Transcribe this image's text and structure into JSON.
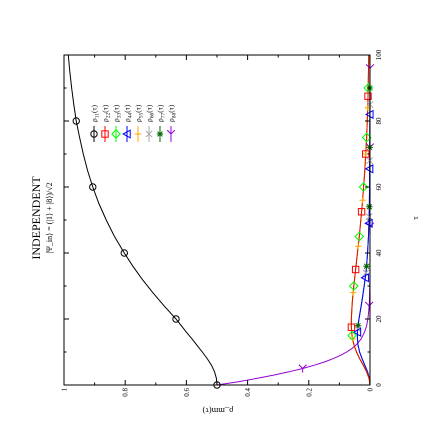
{
  "chart_data": {
    "type": "line",
    "title": "INDEPENDENT",
    "subtitle": "|Ψ_in⟩ = (|1⟩ + |8⟩)/√2",
    "xlabel": "τ",
    "ylabel": "ρ_mm(τ)",
    "xlim": [
      0,
      100
    ],
    "ylim": [
      0,
      1
    ],
    "x_ticks": [
      "0",
      "20",
      "40",
      "60",
      "80",
      "100"
    ],
    "y_ticks": [
      "0",
      "0.2",
      "0.4",
      "0.6",
      "0.8",
      "1"
    ],
    "grid": false,
    "legend_position": "top-left",
    "series": [
      {
        "name": "ρ11(τ)",
        "label_main": "ρ",
        "label_sub": "11",
        "label_tail": "(τ)",
        "color": "#000000",
        "marker": "circle",
        "marker_x": [
          0,
          20,
          40,
          60,
          80
        ],
        "x": [
          0,
          2,
          4,
          6,
          8,
          10,
          12,
          14,
          16,
          18,
          20,
          24,
          28,
          32,
          36,
          40,
          45,
          50,
          55,
          60,
          65,
          70,
          75,
          80,
          85,
          90,
          95,
          100
        ],
        "y": [
          0.5,
          0.502,
          0.508,
          0.518,
          0.532,
          0.548,
          0.565,
          0.582,
          0.6,
          0.617,
          0.634,
          0.673,
          0.71,
          0.744,
          0.775,
          0.803,
          0.835,
          0.862,
          0.886,
          0.906,
          0.923,
          0.937,
          0.949,
          0.96,
          0.968,
          0.975,
          0.981,
          0.986
        ]
      },
      {
        "name": "ρ22(τ)",
        "label_main": "ρ",
        "label_sub": "22",
        "label_tail": "(τ)",
        "color": "#ff0000",
        "marker": "square",
        "marker_x": [
          17.5,
          35,
          52.5,
          70,
          87.5
        ],
        "x": [
          0,
          2,
          4,
          6,
          8,
          10,
          12,
          14,
          16,
          18,
          20,
          25,
          30,
          35,
          40,
          45,
          50,
          55,
          60,
          65,
          70,
          75,
          80,
          85,
          90,
          95,
          100
        ],
        "y": [
          0,
          0.003,
          0.011,
          0.022,
          0.034,
          0.044,
          0.052,
          0.057,
          0.06,
          0.061,
          0.061,
          0.058,
          0.053,
          0.047,
          0.041,
          0.035,
          0.03,
          0.025,
          0.021,
          0.017,
          0.014,
          0.011,
          0.009,
          0.007,
          0.006,
          0.005,
          0.004
        ]
      },
      {
        "name": "ρ33(τ)",
        "label_main": "ρ",
        "label_sub": "33",
        "label_tail": "(τ)",
        "color": "#00ff00",
        "marker": "diamond",
        "marker_x": [
          15,
          30,
          45,
          60,
          75,
          90
        ],
        "x": [
          0,
          2,
          4,
          6,
          8,
          10,
          12,
          14,
          16,
          18,
          20,
          25,
          30,
          35,
          40,
          45,
          50,
          55,
          60,
          65,
          70,
          75,
          80,
          85,
          90,
          95,
          100
        ],
        "y": [
          0,
          0.003,
          0.011,
          0.022,
          0.034,
          0.044,
          0.052,
          0.057,
          0.06,
          0.061,
          0.061,
          0.058,
          0.053,
          0.047,
          0.041,
          0.035,
          0.03,
          0.025,
          0.021,
          0.017,
          0.014,
          0.011,
          0.009,
          0.007,
          0.006,
          0.005,
          0.004
        ]
      },
      {
        "name": "ρ44(τ)",
        "label_main": "ρ",
        "label_sub": "44",
        "label_tail": "(τ)",
        "color": "#0000ff",
        "marker": "triangle",
        "marker_x": [
          16,
          32.5,
          49,
          65.5,
          82
        ],
        "x": [
          0,
          2,
          4,
          6,
          8,
          10,
          12,
          14,
          16,
          18,
          20,
          25,
          30,
          35,
          40,
          45,
          50,
          55,
          60,
          70,
          80,
          90,
          100
        ],
        "y": [
          0,
          0.002,
          0.008,
          0.017,
          0.026,
          0.034,
          0.039,
          0.041,
          0.041,
          0.039,
          0.036,
          0.027,
          0.019,
          0.012,
          0.008,
          0.005,
          0.003,
          0.002,
          0.0015,
          0.001,
          0.0005,
          0.0003,
          0.0002
        ]
      },
      {
        "name": "ρ55(τ)",
        "label_main": "ρ",
        "label_sub": "55",
        "label_tail": "(τ)",
        "color": "#ffa500",
        "marker": "plus",
        "marker_x": [
          14,
          28,
          42,
          56,
          70,
          84
        ],
        "x": [
          0,
          2,
          4,
          6,
          8,
          10,
          12,
          14,
          16,
          18,
          20,
          25,
          30,
          35,
          40,
          45,
          50,
          55,
          60,
          65,
          70,
          75,
          80,
          85,
          90,
          95,
          100
        ],
        "y": [
          0,
          0.003,
          0.011,
          0.022,
          0.034,
          0.044,
          0.052,
          0.057,
          0.06,
          0.061,
          0.061,
          0.058,
          0.053,
          0.047,
          0.041,
          0.035,
          0.03,
          0.025,
          0.021,
          0.017,
          0.014,
          0.011,
          0.009,
          0.007,
          0.006,
          0.005,
          0.004
        ]
      },
      {
        "name": "ρ66(τ)",
        "label_main": "ρ",
        "label_sub": "66",
        "label_tail": "(τ)",
        "color": "#a9a9a9",
        "marker": "cross",
        "marker_x": [
          17,
          34,
          51,
          68,
          85
        ],
        "x": [
          0,
          2,
          4,
          6,
          8,
          10,
          12,
          14,
          16,
          18,
          20,
          25,
          30,
          35,
          40,
          45,
          50,
          55,
          60,
          70,
          80,
          90,
          100
        ],
        "y": [
          0,
          0.002,
          0.008,
          0.017,
          0.026,
          0.034,
          0.039,
          0.041,
          0.041,
          0.039,
          0.036,
          0.027,
          0.019,
          0.012,
          0.008,
          0.005,
          0.003,
          0.002,
          0.0015,
          0.001,
          0.0005,
          0.0003,
          0.0002
        ]
      },
      {
        "name": "ρ77(τ)",
        "label_main": "ρ",
        "label_sub": "77",
        "label_tail": "(τ)",
        "color": "#006400",
        "marker": "star",
        "marker_x": [
          18,
          36,
          54,
          72,
          90
        ],
        "x": [
          0,
          2,
          4,
          6,
          8,
          10,
          12,
          14,
          16,
          18,
          20,
          25,
          30,
          35,
          40,
          45,
          50,
          55,
          60,
          70,
          80,
          90,
          100
        ],
        "y": [
          0,
          0.002,
          0.008,
          0.017,
          0.026,
          0.034,
          0.039,
          0.041,
          0.041,
          0.039,
          0.036,
          0.027,
          0.019,
          0.012,
          0.008,
          0.005,
          0.003,
          0.002,
          0.0015,
          0.001,
          0.0005,
          0.0003,
          0.0002
        ]
      },
      {
        "name": "ρ88(τ)",
        "label_main": "ρ",
        "label_sub": "88",
        "label_tail": "(τ)",
        "color": "#9400d3",
        "marker": "tri-right",
        "marker_x": [
          5,
          24,
          48,
          72,
          96
        ],
        "x": [
          0,
          1,
          2,
          3,
          4,
          5,
          6,
          7,
          8,
          9,
          10,
          11,
          12,
          13,
          14,
          16,
          18,
          20,
          22,
          25,
          30,
          35,
          40,
          50,
          60,
          70,
          80,
          90,
          100
        ],
        "y": [
          0.5,
          0.43,
          0.37,
          0.315,
          0.265,
          0.22,
          0.182,
          0.148,
          0.12,
          0.096,
          0.076,
          0.06,
          0.047,
          0.037,
          0.029,
          0.018,
          0.011,
          0.007,
          0.0045,
          0.002,
          0.0007,
          0.0002,
          0.0001,
          0,
          0,
          0,
          0,
          0,
          0
        ]
      }
    ]
  }
}
